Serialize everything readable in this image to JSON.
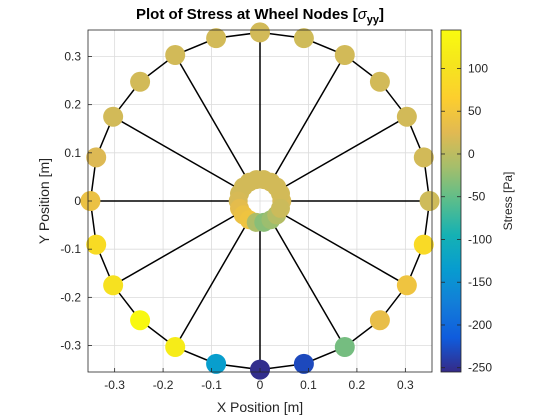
{
  "chart_data": {
    "type": "scatter",
    "title": "Plot of Stress at Wheel Nodes [",
    "title_symbol": "σ",
    "title_subscript": "yy",
    "title_close": "]",
    "xlabel": "X Position [m]",
    "ylabel": "Y Position [m]",
    "xlim": [
      -0.355,
      0.355
    ],
    "ylim": [
      -0.355,
      0.355
    ],
    "xticks": [
      -0.3,
      -0.2,
      -0.1,
      0,
      0.1,
      0.2,
      0.3
    ],
    "xtick_labels": [
      "-0.3",
      "-0.2",
      "-0.1",
      "0",
      "0.1",
      "0.2",
      "0.3"
    ],
    "yticks": [
      -0.3,
      -0.2,
      -0.1,
      0,
      0.1,
      0.2,
      0.3
    ],
    "ytick_labels": [
      "-0.3",
      "-0.2",
      "-0.1",
      "0",
      "0.1",
      "0.2",
      "0.3"
    ],
    "grid": true,
    "colorbar": {
      "label": "Stress [Pa]",
      "range": [
        -255,
        145
      ],
      "ticks": [
        100,
        50,
        0,
        -50,
        -100,
        -150,
        -200,
        -250
      ],
      "tick_labels": [
        "100",
        "50",
        "0",
        "-50",
        "-100",
        "-150",
        "-200",
        "-250"
      ],
      "colormap": "parula"
    },
    "rim": {
      "radius": 0.35,
      "angles_deg": [
        0,
        15,
        30,
        45,
        60,
        75,
        90,
        105,
        120,
        135,
        150,
        165,
        180,
        195,
        210,
        225,
        240,
        255,
        270,
        285,
        300,
        315,
        330,
        345
      ],
      "stress": [
        12,
        15,
        15,
        15,
        15,
        13,
        15,
        15,
        15,
        15,
        15,
        22,
        40,
        88,
        98,
        139,
        118,
        -132,
        -252,
        -230,
        -40,
        35,
        45,
        85
      ]
    },
    "hub": {
      "radius": 0.045,
      "angles_deg": [
        0,
        20,
        40,
        60,
        80,
        100,
        120,
        140,
        160,
        180,
        200,
        220,
        240,
        260,
        280,
        300,
        320,
        340
      ],
      "stress": [
        18,
        15,
        15,
        15,
        15,
        15,
        15,
        15,
        15,
        18,
        30,
        40,
        45,
        -10,
        -30,
        -20,
        -5,
        10
      ]
    },
    "spokes": {
      "angles_deg": [
        0,
        30,
        60,
        90,
        120,
        150,
        180,
        210,
        240,
        270,
        300,
        330
      ]
    }
  }
}
